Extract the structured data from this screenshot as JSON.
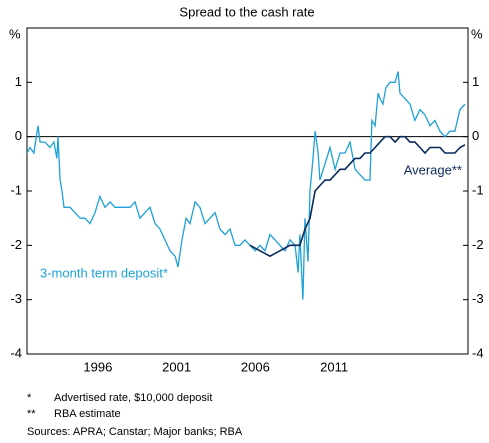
{
  "chart_data": {
    "type": "line",
    "subtitle": "Spread to the cash rate",
    "y_unit_label": "%",
    "xlim": [
      1992,
      2020
    ],
    "xticks": [
      {
        "value": 1996.5,
        "label": "1996"
      },
      {
        "value": 2001.5,
        "label": "2001"
      },
      {
        "value": 2006.5,
        "label": "2006"
      },
      {
        "value": 2011.5,
        "label": "2011"
      }
    ],
    "ylim": [
      -4,
      2
    ],
    "yticks": [
      -4,
      -3,
      -2,
      -1,
      0,
      1
    ],
    "zero_line": true,
    "series": [
      {
        "name": "3-month term deposit*",
        "color": "#1ea1d8",
        "x": [
          1992.0,
          1992.19,
          1992.44,
          1992.7,
          1992.83,
          1993.14,
          1993.46,
          1993.71,
          1993.9,
          1993.97,
          1994.1,
          1994.22,
          1994.35,
          1994.73,
          1995.05,
          1995.37,
          1995.68,
          1996.0,
          1996.32,
          1996.63,
          1996.95,
          1997.27,
          1997.59,
          1997.9,
          1998.22,
          1998.54,
          1998.86,
          1999.17,
          1999.49,
          1999.81,
          2000.13,
          2000.44,
          2000.76,
          2001.08,
          2001.4,
          2001.59,
          2001.84,
          2002.1,
          2002.35,
          2002.67,
          2002.98,
          2003.3,
          2003.62,
          2003.94,
          2004.25,
          2004.57,
          2004.89,
          2005.21,
          2005.52,
          2005.84,
          2006.16,
          2006.48,
          2006.79,
          2007.11,
          2007.43,
          2007.75,
          2008.06,
          2008.38,
          2008.7,
          2009.02,
          2009.21,
          2009.33,
          2009.52,
          2009.65,
          2009.84,
          2009.97,
          2010.16,
          2010.29,
          2010.48,
          2010.6,
          2010.92,
          2011.24,
          2011.56,
          2011.87,
          2012.19,
          2012.51,
          2012.83,
          2013.14,
          2013.46,
          2013.78,
          2013.9,
          2014.1,
          2014.29,
          2014.41,
          2014.6,
          2014.79,
          2015.05,
          2015.37,
          2015.56,
          2015.68,
          2016.0,
          2016.32,
          2016.63,
          2016.95,
          2017.27,
          2017.59,
          2017.9,
          2018.22,
          2018.54,
          2018.86,
          2019.17,
          2019.49,
          2019.81
        ],
        "values": [
          -0.3,
          -0.2,
          -0.3,
          0.2,
          -0.1,
          -0.1,
          -0.2,
          -0.1,
          -0.4,
          0,
          -0.8,
          -1.0,
          -1.3,
          -1.3,
          -1.4,
          -1.5,
          -1.5,
          -1.6,
          -1.4,
          -1.1,
          -1.3,
          -1.2,
          -1.3,
          -1.3,
          -1.3,
          -1.3,
          -1.2,
          -1.5,
          -1.4,
          -1.3,
          -1.6,
          -1.7,
          -1.9,
          -2.1,
          -2.2,
          -2.4,
          -1.9,
          -1.5,
          -1.6,
          -1.2,
          -1.3,
          -1.6,
          -1.5,
          -1.4,
          -1.7,
          -1.8,
          -1.7,
          -2.0,
          -2.0,
          -1.9,
          -2.0,
          -2.1,
          -2.0,
          -2.1,
          -1.8,
          -1.9,
          -2.0,
          -2.1,
          -1.9,
          -2.0,
          -2.5,
          -1.8,
          -3.0,
          -1.5,
          -2.3,
          -1.0,
          -0.4,
          0.1,
          -0.3,
          -0.8,
          -0.5,
          -0.2,
          -0.6,
          -0.3,
          -0.3,
          -0.1,
          -0.6,
          -0.7,
          -0.8,
          -0.8,
          0.3,
          0.2,
          0.8,
          0.7,
          0.6,
          0.9,
          1.0,
          1.0,
          1.2,
          0.8,
          0.7,
          0.6,
          0.3,
          0.5,
          0.4,
          0.2,
          0.3,
          0.1,
          0.0,
          0.1,
          0.1,
          0.5,
          0.6
        ]
      },
      {
        "name": "Average**",
        "color": "#0b2a5b",
        "x": [
          2006.16,
          2006.79,
          2007.43,
          2008.06,
          2008.7,
          2009.33,
          2009.65,
          2009.97,
          2010.29,
          2010.6,
          2010.92,
          2011.24,
          2011.56,
          2011.87,
          2012.19,
          2012.51,
          2012.83,
          2013.14,
          2013.46,
          2013.78,
          2014.1,
          2014.41,
          2014.73,
          2015.05,
          2015.37,
          2015.68,
          2016.0,
          2016.32,
          2016.63,
          2016.95,
          2017.27,
          2017.59,
          2017.9,
          2018.22,
          2018.54,
          2018.86,
          2019.17,
          2019.49,
          2019.81
        ],
        "values": [
          -2.0,
          -2.1,
          -2.2,
          -2.1,
          -2.0,
          -2.0,
          -1.7,
          -1.5,
          -1.0,
          -0.9,
          -0.8,
          -0.8,
          -0.7,
          -0.6,
          -0.6,
          -0.5,
          -0.4,
          -0.4,
          -0.3,
          -0.3,
          -0.2,
          -0.1,
          0.0,
          0.0,
          -0.1,
          0.0,
          0.0,
          -0.1,
          -0.1,
          -0.2,
          -0.3,
          -0.2,
          -0.2,
          -0.2,
          -0.3,
          -0.3,
          -0.3,
          -0.2,
          -0.15
        ]
      }
    ],
    "footnotes": [
      {
        "marker": "*",
        "text": "Advertised rate, $10,000 deposit"
      },
      {
        "marker": "**",
        "text": "RBA estimate"
      }
    ],
    "sources": "Sources:   APRA; Canstar; Major banks; RBA"
  }
}
